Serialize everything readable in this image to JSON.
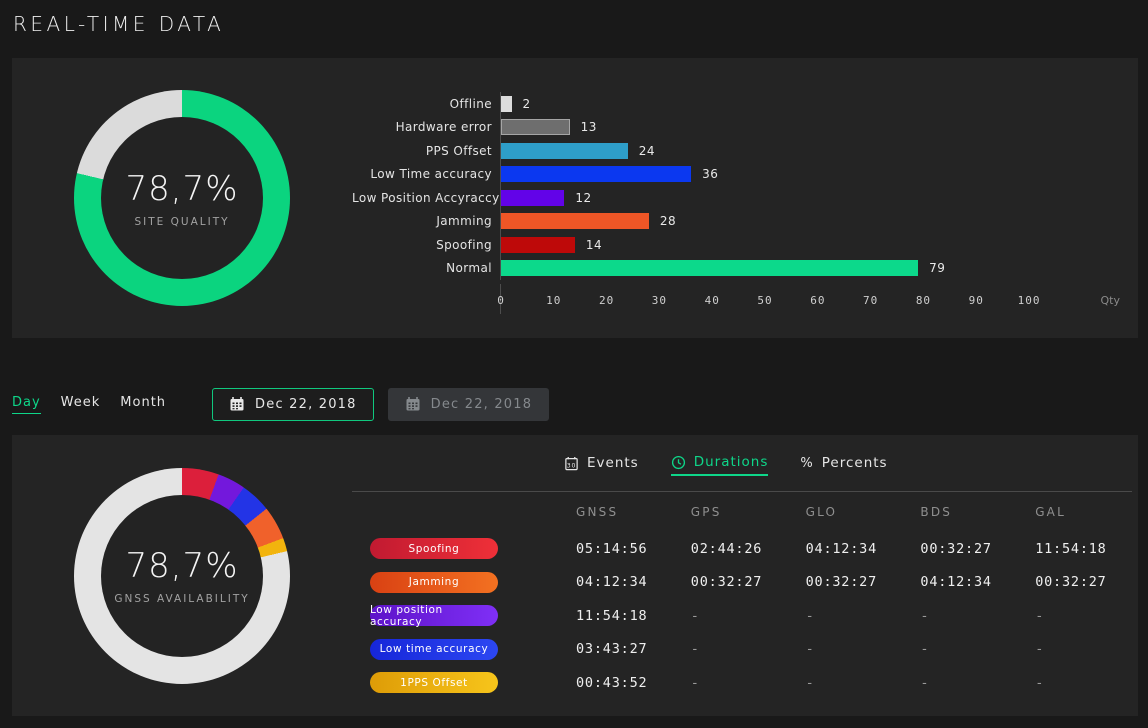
{
  "page": {
    "title": "REAL-TIME DATA"
  },
  "colors": {
    "accent_green": "#0ED689",
    "page_bg": "#191919",
    "panel_bg": "#242424"
  },
  "site_quality": {
    "value": "78,7%",
    "label": "SITE QUALITY"
  },
  "gnss_availability": {
    "value": "78,7%",
    "label": "GNSS AVAILABILITY"
  },
  "controls": {
    "period_tabs": [
      {
        "label": "Day",
        "active": true
      },
      {
        "label": "Week",
        "active": false
      },
      {
        "label": "Month",
        "active": false
      }
    ],
    "date_from": {
      "label": "Dec 22, 2018",
      "icon": "calendar-icon",
      "active": true
    },
    "date_to": {
      "label": "Dec 22, 2018",
      "icon": "calendar-icon",
      "active": false
    }
  },
  "table": {
    "tabs": [
      {
        "label": "Events",
        "icon": "calendar-icon",
        "active": false
      },
      {
        "label": "Durations",
        "icon": "clock-icon",
        "active": true
      },
      {
        "label": "Percents",
        "icon": "percent-icon",
        "icon_char": "%",
        "active": false
      }
    ],
    "columns": [
      "GNSS",
      "GPS",
      "GLO",
      "BDS",
      "GAL"
    ],
    "rows": [
      {
        "badge": "Spoofing",
        "badge_colors": [
          "#C11A31",
          "#EF3038"
        ],
        "cells": [
          "05:14:56",
          "02:44:26",
          "04:12:34",
          "00:32:27",
          "11:54:18"
        ]
      },
      {
        "badge": "Jamming",
        "badge_colors": [
          "#D94113",
          "#F37121"
        ],
        "cells": [
          "04:12:34",
          "00:32:27",
          "00:32:27",
          "04:12:34",
          "00:32:27"
        ]
      },
      {
        "badge": "Low position accuracy",
        "badge_colors": [
          "#5D13C9",
          "#7F2FF6"
        ],
        "cells": [
          "11:54:18",
          "-",
          "-",
          "-",
          "-"
        ]
      },
      {
        "badge": "Low time accuracy",
        "badge_colors": [
          "#1626D9",
          "#2C47F2"
        ],
        "cells": [
          "03:43:27",
          "-",
          "-",
          "-",
          "-"
        ]
      },
      {
        "badge": "1PPS Offset",
        "badge_colors": [
          "#DE9C07",
          "#F7C51B"
        ],
        "cells": [
          "00:43:52",
          "-",
          "-",
          "-",
          "-"
        ]
      }
    ]
  },
  "chart_data": [
    {
      "type": "pie",
      "title": "SITE QUALITY",
      "center_text": "78,7%",
      "segments": [
        {
          "label": "Site quality",
          "value": 78.7,
          "color": "#0BD47F"
        },
        {
          "label": "Remainder",
          "value": 21.3,
          "color": "#DBDBDB"
        }
      ]
    },
    {
      "type": "bar",
      "orientation": "horizontal",
      "xlabel": "Qty",
      "categories": [
        "Offline",
        "Hardware error",
        "PPS Offset",
        "Low Time accuracy",
        "Low Position Accyraccy",
        "Jamming",
        "Spoofing",
        "Normal"
      ],
      "values": [
        2,
        13,
        24,
        36,
        12,
        28,
        14,
        79
      ],
      "colors": [
        "#DCDCDC",
        "#6E6E6E",
        "#2E9EC9",
        "#0B38F0",
        "#6203E8",
        "#EE5626",
        "#BE0909",
        "#0CD98B"
      ],
      "borders": [
        null,
        "#A5A5A5",
        null,
        null,
        null,
        null,
        null,
        null
      ],
      "ticks": [
        0,
        10,
        20,
        30,
        40,
        50,
        60,
        70,
        80,
        90,
        100
      ],
      "xmax": 117.6,
      "grid": false
    },
    {
      "type": "pie",
      "title": "GNSS AVAILABILITY",
      "center_text": "78,7%",
      "segments": [
        {
          "label": "Spoofing",
          "value": 5.5,
          "color": "#DC1F3B"
        },
        {
          "label": "Low position accuracy",
          "value": 4.2,
          "color": "#7318DC"
        },
        {
          "label": "Low time accuracy",
          "value": 4.6,
          "color": "#2334E6"
        },
        {
          "label": "Jamming",
          "value": 5.0,
          "color": "#F0612B"
        },
        {
          "label": "1PPS Offset",
          "value": 2.0,
          "color": "#F2B40D"
        },
        {
          "label": "Available",
          "value": 78.7,
          "color": "#E4E4E4"
        }
      ]
    }
  ]
}
